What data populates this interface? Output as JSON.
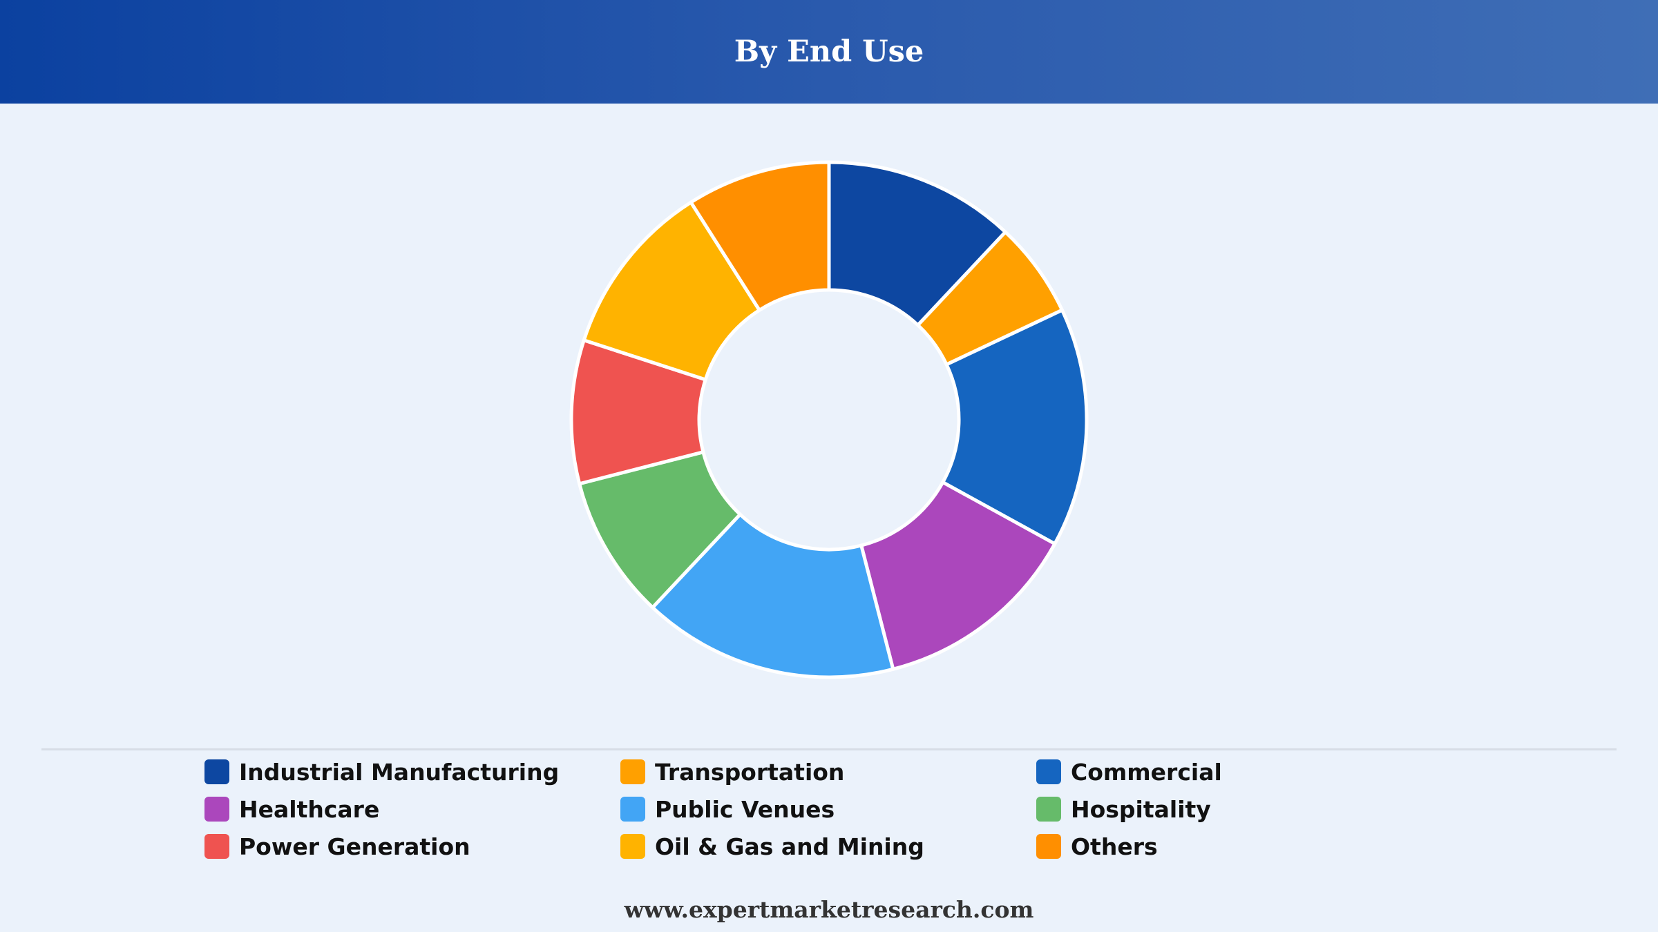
{
  "header": {
    "title": "By End Use"
  },
  "chart_data": {
    "type": "pie",
    "donut": true,
    "title": "By End Use",
    "categories": [
      "Industrial Manufacturing",
      "Transportation",
      "Commercial",
      "Healthcare",
      "Public Venues",
      "Hospitality",
      "Power Generation",
      "Oil & Gas and Mining",
      "Others"
    ],
    "values": [
      12,
      6,
      15,
      13,
      16,
      9,
      9,
      11,
      9
    ],
    "unit": "approx. share (%)",
    "colors": [
      "#0d47a1",
      "#ffa000",
      "#1565c0",
      "#ab47bc",
      "#42a5f5",
      "#66bb6a",
      "#ef5350",
      "#ffb300",
      "#ff8f00"
    ],
    "legend_position": "bottom",
    "grid": false
  },
  "footer": {
    "text": "www.expertmarketresearch.com"
  }
}
